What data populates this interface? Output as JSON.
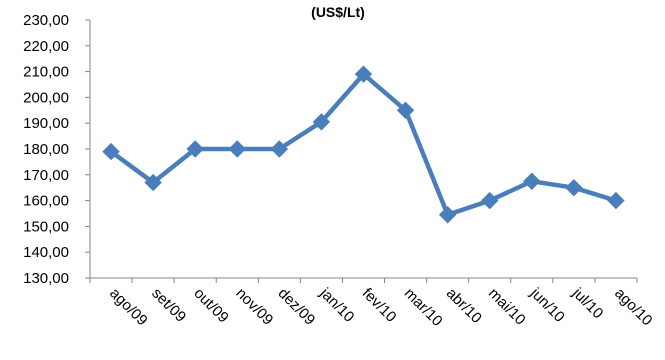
{
  "chart_data": {
    "type": "line",
    "title": "(US$/Lt)",
    "categories": [
      "ago/09",
      "set/09",
      "out/09",
      "nov/09",
      "dez/09",
      "jan/10",
      "fev/10",
      "mar/10",
      "abr/10",
      "mai/10",
      "jun/10",
      "jul/10",
      "ago/10"
    ],
    "series": [
      {
        "values": [
          179,
          167,
          180,
          180,
          180,
          190.5,
          209,
          195,
          154.5,
          160,
          167.5,
          165,
          160
        ]
      }
    ],
    "yticks": [
      "130,00",
      "140,00",
      "150,00",
      "160,00",
      "170,00",
      "180,00",
      "190,00",
      "200,00",
      "210,00",
      "220,00",
      "230,00"
    ],
    "ylim": [
      130,
      230
    ],
    "grid": false,
    "legend": "none",
    "colors": {
      "series": "#4a7ebb",
      "axis": "#868686"
    }
  }
}
